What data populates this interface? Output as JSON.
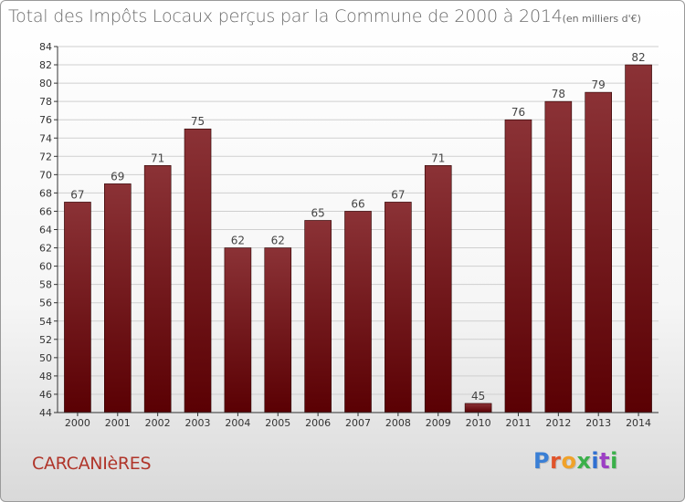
{
  "title": "Total des Impôts Locaux perçus par la Commune de 2000 à 2014",
  "title_unit": "(en milliers d'€)",
  "commune": "CARCANIèRES",
  "logo": {
    "text": "Proxiti",
    "letter_colors": [
      "#3a7fd5",
      "#e0542b",
      "#f0a22a",
      "#3ab04a",
      "#2f6fd1",
      "#9c3fc4",
      "#3ab04a"
    ]
  },
  "colors": {
    "bar_top": "#8b3236",
    "bar_bottom": "#5a0003",
    "bar_edge": "#2a0000",
    "axis": "#333333",
    "tick_text": "#333333",
    "grid": "#cfcfcf",
    "value_text": "#444444"
  },
  "chart_data": {
    "type": "bar",
    "categories": [
      "2000",
      "2001",
      "2002",
      "2003",
      "2004",
      "2005",
      "2006",
      "2007",
      "2008",
      "2009",
      "2010",
      "2011",
      "2012",
      "2013",
      "2014"
    ],
    "values": [
      67,
      69,
      71,
      75,
      62,
      62,
      65,
      66,
      67,
      71,
      45,
      76,
      78,
      79,
      82
    ],
    "title": "Total des Impôts Locaux perçus par la Commune de 2000 à 2014",
    "xlabel": "",
    "ylabel": "",
    "ylim": [
      44,
      84
    ],
    "yticks": [
      44,
      46,
      48,
      50,
      52,
      54,
      56,
      58,
      60,
      62,
      64,
      66,
      68,
      70,
      72,
      74,
      76,
      78,
      80,
      82,
      84
    ],
    "grid": true,
    "value_labels": true
  }
}
